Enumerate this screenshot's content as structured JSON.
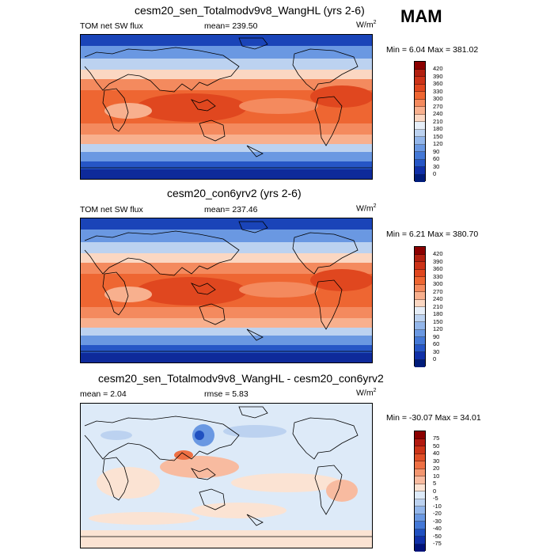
{
  "season": "MAM",
  "panels": [
    {
      "title": "cesm20_sen_Totalmodv9v8_WangHL (yrs 2-6)",
      "left_label": "TOM net SW flux",
      "mid_label": "mean= 239.50",
      "units": "W/m",
      "units_sup": "2",
      "minmax": "Min =   6.04 Max = 381.02",
      "kind": "abs",
      "levels": [
        "420",
        "390",
        "360",
        "330",
        "300",
        "270",
        "240",
        "210",
        "180",
        "150",
        "120",
        "90",
        "60",
        "30",
        "0"
      ],
      "colors": [
        "#8b0000",
        "#b22010",
        "#cc3318",
        "#e0471f",
        "#ee6632",
        "#f48a5e",
        "#f8b08e",
        "#fbd7c2",
        "#e6eef8",
        "#bcd2f0",
        "#93b6ea",
        "#6a98e2",
        "#4478d6",
        "#2656c6",
        "#1030a8",
        "#001c7a"
      ]
    },
    {
      "title": "cesm20_con6yrv2 (yrs 2-6)",
      "left_label": "TOM net SW flux",
      "mid_label": "mean= 237.46",
      "units": "W/m",
      "units_sup": "2",
      "minmax": "Min =   6.21 Max = 380.70",
      "kind": "abs",
      "levels": [
        "420",
        "390",
        "360",
        "330",
        "300",
        "270",
        "240",
        "210",
        "180",
        "150",
        "120",
        "90",
        "60",
        "30",
        "0"
      ],
      "colors": [
        "#8b0000",
        "#b22010",
        "#cc3318",
        "#e0471f",
        "#ee6632",
        "#f48a5e",
        "#f8b08e",
        "#fbd7c2",
        "#e6eef8",
        "#bcd2f0",
        "#93b6ea",
        "#6a98e2",
        "#4478d6",
        "#2656c6",
        "#1030a8",
        "#001c7a"
      ]
    },
    {
      "title": "cesm20_sen_Totalmodv9v8_WangHL - cesm20_con6yrv2",
      "left_label": "mean =   2.04",
      "mid_label": "rmse =   5.83",
      "units": "W/m",
      "units_sup": "2",
      "minmax": "Min = -30.07 Max =  34.01",
      "kind": "diff",
      "levels": [
        "75",
        "50",
        "40",
        "30",
        "20",
        "10",
        "5",
        "0",
        "-5",
        "-10",
        "-20",
        "-30",
        "-40",
        "-50",
        "-75"
      ],
      "colors": [
        "#8b0000",
        "#b21a10",
        "#cc3418",
        "#e05028",
        "#ee7044",
        "#f39670",
        "#f8bba0",
        "#fbe3d3",
        "#ddeaf8",
        "#bcd2f0",
        "#93b6ea",
        "#6a98e2",
        "#4478d6",
        "#2050c0",
        "#1030a8",
        "#00127a"
      ]
    }
  ]
}
